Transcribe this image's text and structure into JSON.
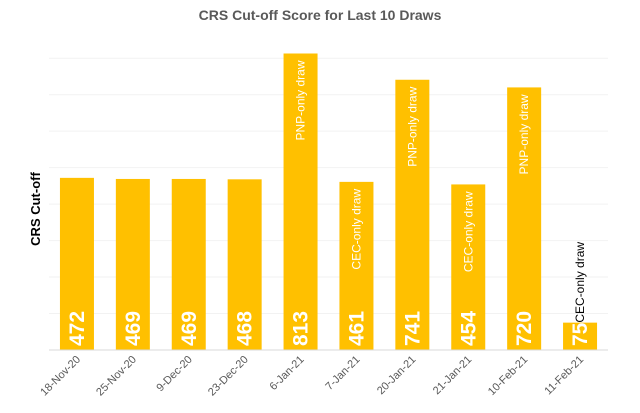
{
  "chart_data": {
    "type": "bar",
    "title": "CRS Cut-off Score for Last 10 Draws",
    "xlabel": "",
    "ylabel": "CRS Cut-off",
    "ylim": [
      0,
      850
    ],
    "grid": true,
    "legend": "none",
    "categories": [
      "18-Nov-20",
      "25-Nov-20",
      "9-Dec-20",
      "23-Dec-20",
      "6-Jan-21",
      "7-Jan-21",
      "20-Jan-21",
      "21-Jan-21",
      "10-Feb-21",
      "11-Feb-21"
    ],
    "values": [
      472,
      469,
      469,
      468,
      813,
      461,
      741,
      454,
      720,
      75
    ],
    "data_labels": [
      "472",
      "469",
      "469",
      "468",
      "813",
      "461",
      "741",
      "454",
      "720",
      "75"
    ],
    "annotations": [
      "",
      "",
      "",
      "",
      "PNP-only draw",
      "CEC-only draw",
      "PNP-only draw",
      "CEC-only draw",
      "PNP-only draw",
      "CEC-only draw"
    ],
    "bar_color": "#FFC000"
  }
}
